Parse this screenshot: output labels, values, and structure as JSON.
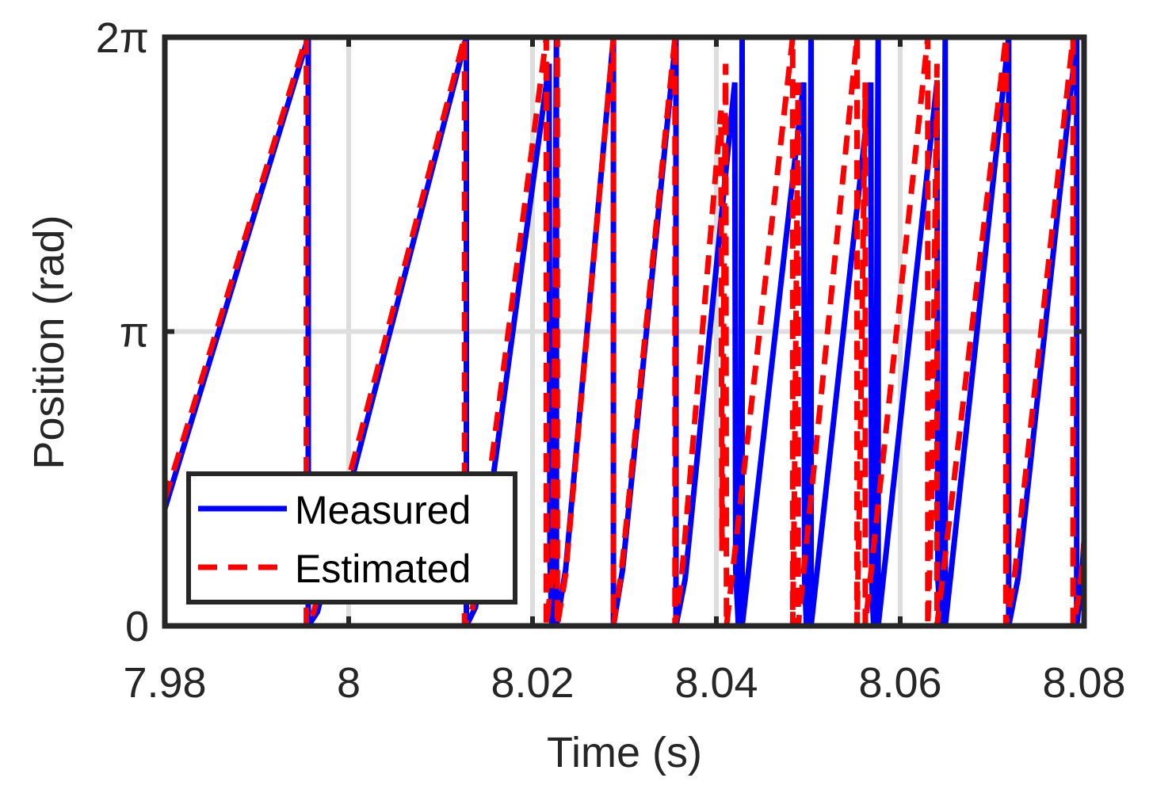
{
  "chart_data": {
    "type": "line",
    "title": "",
    "xlabel": "Time (s)",
    "ylabel": "Position (rad)",
    "xlim": [
      7.98,
      8.08
    ],
    "ylim": [
      0,
      6.2832
    ],
    "grid": true,
    "legend_position": "bottom-left",
    "x_ticks": [
      {
        "value": 7.98,
        "label": "7.98"
      },
      {
        "value": 8.0,
        "label": "8"
      },
      {
        "value": 8.02,
        "label": "8.02"
      },
      {
        "value": 8.04,
        "label": "8.04"
      },
      {
        "value": 8.06,
        "label": "8.06"
      },
      {
        "value": 8.08,
        "label": "8.08"
      }
    ],
    "y_ticks": [
      {
        "value": 0,
        "label": "0"
      },
      {
        "value": 3.1416,
        "label": "π"
      },
      {
        "value": 6.2832,
        "label": "2π"
      }
    ],
    "series": [
      {
        "name": "Measured",
        "color": "#0000ff",
        "style": "solid",
        "points": [
          [
            7.98,
            1.25
          ],
          [
            7.9956,
            6.2832
          ],
          [
            7.9956,
            0
          ],
          [
            7.9966,
            0.15
          ],
          [
            8.0128,
            6.2832
          ],
          [
            8.0128,
            0
          ],
          [
            8.0138,
            0.2
          ],
          [
            8.0218,
            6.0
          ],
          [
            8.0219,
            0.7
          ],
          [
            8.0221,
            0
          ],
          [
            8.0223,
            0.7
          ],
          [
            8.0226,
            6.2832
          ],
          [
            8.0226,
            0
          ],
          [
            8.0236,
            0.6
          ],
          [
            8.0288,
            6.2832
          ],
          [
            8.0288,
            0
          ],
          [
            8.0298,
            0.6
          ],
          [
            8.0356,
            6.2832
          ],
          [
            8.0356,
            0
          ],
          [
            8.0366,
            0.5
          ],
          [
            8.042,
            5.8
          ],
          [
            8.0421,
            0.6
          ],
          [
            8.0424,
            0
          ],
          [
            8.0426,
            0.7
          ],
          [
            8.0428,
            6.2832
          ],
          [
            8.0428,
            0
          ],
          [
            8.0495,
            5.8
          ],
          [
            8.0496,
            0.5
          ],
          [
            8.0498,
            0
          ],
          [
            8.05,
            0.6
          ],
          [
            8.0503,
            6.2832
          ],
          [
            8.0503,
            0
          ],
          [
            8.0568,
            5.8
          ],
          [
            8.0569,
            0.5
          ],
          [
            8.0571,
            0
          ],
          [
            8.0573,
            0.6
          ],
          [
            8.0576,
            6.2832
          ],
          [
            8.0576,
            0
          ],
          [
            8.064,
            5.8
          ],
          [
            8.0641,
            0.5
          ],
          [
            8.0644,
            0
          ],
          [
            8.0646,
            0.6
          ],
          [
            8.0649,
            6.2832
          ],
          [
            8.0649,
            0
          ],
          [
            8.0718,
            6.2832
          ],
          [
            8.0718,
            0
          ],
          [
            8.0728,
            0.5
          ],
          [
            8.0792,
            6.2832
          ],
          [
            8.0792,
            0
          ],
          [
            8.0797,
            0.45
          ],
          [
            8.08,
            0.9
          ]
        ]
      },
      {
        "name": "Estimated",
        "color": "#ff0000",
        "style": "dashed",
        "points": [
          [
            7.98,
            1.35
          ],
          [
            7.9954,
            6.2832
          ],
          [
            7.9954,
            0
          ],
          [
            7.9962,
            0.15
          ],
          [
            8.0126,
            6.2832
          ],
          [
            8.0126,
            0
          ],
          [
            8.0135,
            0.2
          ],
          [
            8.0215,
            6.2832
          ],
          [
            8.0215,
            0
          ],
          [
            8.0222,
            0.6
          ],
          [
            8.0227,
            6.2832
          ],
          [
            8.0227,
            0
          ],
          [
            8.0236,
            0.55
          ],
          [
            8.0288,
            6.2832
          ],
          [
            8.0288,
            0
          ],
          [
            8.0297,
            0.6
          ],
          [
            8.0355,
            6.2832
          ],
          [
            8.0355,
            0
          ],
          [
            8.0362,
            0.5
          ],
          [
            8.0405,
            5.5
          ],
          [
            8.0406,
            0.8
          ],
          [
            8.041,
            6.0
          ],
          [
            8.0411,
            0
          ],
          [
            8.0483,
            6.2832
          ],
          [
            8.0483,
            0
          ],
          [
            8.0485,
            1.5
          ],
          [
            8.0489,
            5.8
          ],
          [
            8.0489,
            0
          ],
          [
            8.0553,
            6.2832
          ],
          [
            8.0553,
            0
          ],
          [
            8.0556,
            1.5
          ],
          [
            8.0562,
            5.8
          ],
          [
            8.0562,
            0
          ],
          [
            8.063,
            6.2832
          ],
          [
            8.063,
            0
          ],
          [
            8.0634,
            1.2
          ],
          [
            8.064,
            6.0
          ],
          [
            8.064,
            0
          ],
          [
            8.0715,
            6.2832
          ],
          [
            8.0715,
            0
          ],
          [
            8.0724,
            0.5
          ],
          [
            8.0788,
            6.2832
          ],
          [
            8.0788,
            0
          ],
          [
            8.0795,
            0.35
          ],
          [
            8.08,
            0.9
          ]
        ]
      }
    ]
  }
}
